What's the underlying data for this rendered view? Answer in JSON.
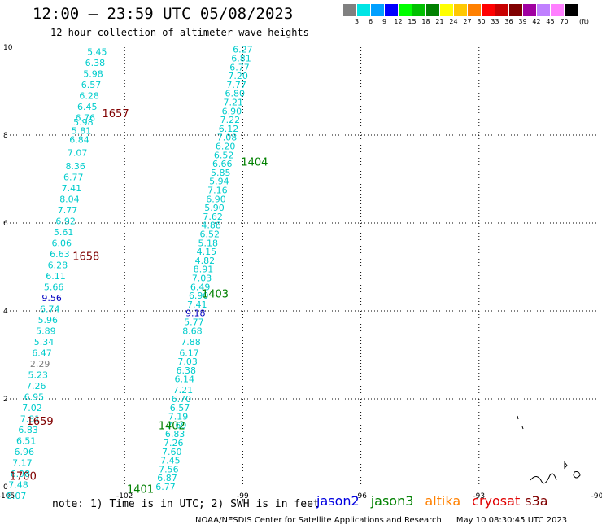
{
  "title": "12:00 – 23:59 UTC 05/08/2023",
  "subtitle": "12 hour collection of altimeter wave heights",
  "legend": {
    "colors": [
      "#808080",
      "#00e5e5",
      "#00a0ff",
      "#0000ff",
      "#00ff00",
      "#00c000",
      "#008000",
      "#ffff00",
      "#ffc800",
      "#ff8000",
      "#ff0000",
      "#c80000",
      "#800000",
      "#a000a0",
      "#c080ff",
      "#ff80ff",
      "#000000"
    ],
    "labels": [
      "3",
      "6",
      "9",
      "12",
      "15",
      "18",
      "21",
      "24",
      "27",
      "30",
      "33",
      "36",
      "39",
      "42",
      "45",
      "70"
    ],
    "unit": "(ft)"
  },
  "note": "note: 1) Time is in UTC; 2) SWH is in feet",
  "missions": [
    {
      "name": "jason2",
      "color": "#0000e0"
    },
    {
      "name": "jason3",
      "color": "#008000"
    },
    {
      "name": "altika",
      "color": "#ff8000"
    },
    {
      "name": "cryosat",
      "color": "#e00000"
    },
    {
      "name": "s3a",
      "color": "#800000"
    }
  ],
  "credit": "NOAA/NESDIS Center for Satellite Applications and Research",
  "credit_time": "May 10 08:30:45 UTC 2023",
  "chart_data": {
    "type": "scatter",
    "xlabel": "",
    "ylabel": "",
    "xlim": [
      -105,
      -90
    ],
    "ylim": [
      0,
      10
    ],
    "x_ticks": [
      "-105",
      "-102",
      "-99",
      "-96",
      "-93",
      "-90"
    ],
    "y_ticks": [
      "0",
      "2",
      "4",
      "6",
      "8",
      "10"
    ],
    "grid": true,
    "units": "ft",
    "tracks": [
      {
        "satellite": "s3a",
        "color": "#800000",
        "time_labels": [
          {
            "text": "1657",
            "x": -102.23,
            "y": 8.5
          },
          {
            "text": "1658",
            "x": -102.98,
            "y": 5.25
          },
          {
            "text": "1659",
            "x": -104.15,
            "y": 1.5
          },
          {
            "text": "1700",
            "x": -104.58,
            "y": 0.25
          }
        ],
        "points": [
          {
            "x": -102.7,
            "y": 9.9,
            "v": "5.45",
            "c": "#00cccc"
          },
          {
            "x": -102.75,
            "y": 9.65,
            "v": "6.38",
            "c": "#00cccc"
          },
          {
            "x": -102.8,
            "y": 9.4,
            "v": "5.98",
            "c": "#00cccc"
          },
          {
            "x": -102.85,
            "y": 9.15,
            "v": "6.57",
            "c": "#00cccc"
          },
          {
            "x": -102.9,
            "y": 8.9,
            "v": "6.28",
            "c": "#00cccc"
          },
          {
            "x": -102.95,
            "y": 8.65,
            "v": "6.45",
            "c": "#00cccc"
          },
          {
            "x": -103.0,
            "y": 8.4,
            "v": "6.76",
            "c": "#00cccc"
          },
          {
            "x": -103.05,
            "y": 8.3,
            "v": "5.98",
            "c": "#00cccc"
          },
          {
            "x": -103.1,
            "y": 8.1,
            "v": "5.81",
            "c": "#00cccc"
          },
          {
            "x": -103.15,
            "y": 7.9,
            "v": "6.84",
            "c": "#00cccc"
          },
          {
            "x": -103.2,
            "y": 7.6,
            "v": "7.07",
            "c": "#00cccc"
          },
          {
            "x": -103.25,
            "y": 7.3,
            "v": "8.36",
            "c": "#00cccc"
          },
          {
            "x": -103.3,
            "y": 7.05,
            "v": "6.77",
            "c": "#00cccc"
          },
          {
            "x": -103.35,
            "y": 6.8,
            "v": "7.41",
            "c": "#00cccc"
          },
          {
            "x": -103.4,
            "y": 6.55,
            "v": "8.04",
            "c": "#00cccc"
          },
          {
            "x": -103.45,
            "y": 6.3,
            "v": "7.77",
            "c": "#00cccc"
          },
          {
            "x": -103.5,
            "y": 6.05,
            "v": "6.92",
            "c": "#00cccc"
          },
          {
            "x": -103.55,
            "y": 5.8,
            "v": "5.61",
            "c": "#00cccc"
          },
          {
            "x": -103.6,
            "y": 5.55,
            "v": "6.06",
            "c": "#00cccc"
          },
          {
            "x": -103.65,
            "y": 5.3,
            "v": "6.63",
            "c": "#00cccc"
          },
          {
            "x": -103.7,
            "y": 5.05,
            "v": "6.28",
            "c": "#00cccc"
          },
          {
            "x": -103.75,
            "y": 4.8,
            "v": "6.11",
            "c": "#00cccc"
          },
          {
            "x": -103.8,
            "y": 4.55,
            "v": "5.66",
            "c": "#00cccc"
          },
          {
            "x": -103.85,
            "y": 4.3,
            "v": "9.56",
            "c": "#0000c0"
          },
          {
            "x": -103.9,
            "y": 4.05,
            "v": "6.74",
            "c": "#00cccc"
          },
          {
            "x": -103.95,
            "y": 3.8,
            "v": "5.96",
            "c": "#00cccc"
          },
          {
            "x": -104.0,
            "y": 3.55,
            "v": "5.89",
            "c": "#00cccc"
          },
          {
            "x": -104.05,
            "y": 3.3,
            "v": "5.34",
            "c": "#00cccc"
          },
          {
            "x": -104.1,
            "y": 3.05,
            "v": "6.47",
            "c": "#00cccc"
          },
          {
            "x": -104.15,
            "y": 2.8,
            "v": "2.29",
            "c": "#808080"
          },
          {
            "x": -104.2,
            "y": 2.55,
            "v": "5.23",
            "c": "#00cccc"
          },
          {
            "x": -104.25,
            "y": 2.3,
            "v": "7.26",
            "c": "#00cccc"
          },
          {
            "x": -104.3,
            "y": 2.05,
            "v": "6.95",
            "c": "#00cccc"
          },
          {
            "x": -104.35,
            "y": 1.8,
            "v": "7.02",
            "c": "#00cccc"
          },
          {
            "x": -104.4,
            "y": 1.55,
            "v": "7.81",
            "c": "#00cccc"
          },
          {
            "x": -104.45,
            "y": 1.3,
            "v": "6.83",
            "c": "#00cccc"
          },
          {
            "x": -104.5,
            "y": 1.05,
            "v": "6.51",
            "c": "#00cccc"
          },
          {
            "x": -104.55,
            "y": 0.8,
            "v": "6.96",
            "c": "#00cccc"
          },
          {
            "x": -104.6,
            "y": 0.55,
            "v": "7.17",
            "c": "#00cccc"
          },
          {
            "x": -104.65,
            "y": 0.3,
            "v": "6.98",
            "c": "#00cccc"
          },
          {
            "x": -104.7,
            "y": 0.05,
            "v": "7.48",
            "c": "#00cccc"
          },
          {
            "x": -104.75,
            "y": -0.2,
            "v": "8.07",
            "c": "#00cccc"
          }
        ]
      },
      {
        "satellite": "jason3",
        "color": "#008000",
        "time_labels": [
          {
            "text": "1404",
            "x": -98.7,
            "y": 7.4
          },
          {
            "text": "1403",
            "x": -99.7,
            "y": 4.4
          },
          {
            "text": "1402",
            "x": -100.8,
            "y": 1.4
          },
          {
            "text": "1401",
            "x": -101.6,
            "y": -0.05
          }
        ],
        "points": [
          {
            "x": -99.0,
            "y": 9.95,
            "v": "6.27",
            "c": "#00cccc"
          },
          {
            "x": -99.04,
            "y": 9.75,
            "v": "6.81",
            "c": "#00cccc"
          },
          {
            "x": -99.08,
            "y": 9.55,
            "v": "6.77",
            "c": "#00cccc"
          },
          {
            "x": -99.12,
            "y": 9.35,
            "v": "7.20",
            "c": "#00cccc"
          },
          {
            "x": -99.16,
            "y": 9.15,
            "v": "7.77",
            "c": "#00cccc"
          },
          {
            "x": -99.2,
            "y": 8.95,
            "v": "6.80",
            "c": "#00cccc"
          },
          {
            "x": -99.24,
            "y": 8.75,
            "v": "7.21",
            "c": "#00cccc"
          },
          {
            "x": -99.28,
            "y": 8.55,
            "v": "6.90",
            "c": "#00cccc"
          },
          {
            "x": -99.32,
            "y": 8.35,
            "v": "7.22",
            "c": "#00cccc"
          },
          {
            "x": -99.36,
            "y": 8.15,
            "v": "6.12",
            "c": "#00cccc"
          },
          {
            "x": -99.4,
            "y": 7.95,
            "v": "7.08",
            "c": "#00cccc"
          },
          {
            "x": -99.44,
            "y": 7.75,
            "v": "6.20",
            "c": "#00cccc"
          },
          {
            "x": -99.48,
            "y": 7.55,
            "v": "6.52",
            "c": "#00cccc"
          },
          {
            "x": -99.52,
            "y": 7.35,
            "v": "6.66",
            "c": "#00cccc"
          },
          {
            "x": -99.56,
            "y": 7.15,
            "v": "5.85",
            "c": "#00cccc"
          },
          {
            "x": -99.6,
            "y": 6.95,
            "v": "5.94",
            "c": "#00cccc"
          },
          {
            "x": -99.64,
            "y": 6.75,
            "v": "7.16",
            "c": "#00cccc"
          },
          {
            "x": -99.68,
            "y": 6.55,
            "v": "6.90",
            "c": "#00cccc"
          },
          {
            "x": -99.72,
            "y": 6.35,
            "v": "5.90",
            "c": "#00cccc"
          },
          {
            "x": -99.76,
            "y": 6.15,
            "v": "7.62",
            "c": "#00cccc"
          },
          {
            "x": -99.8,
            "y": 5.95,
            "v": "4.88",
            "c": "#00cccc"
          },
          {
            "x": -99.84,
            "y": 5.75,
            "v": "6.52",
            "c": "#00cccc"
          },
          {
            "x": -99.88,
            "y": 5.55,
            "v": "5.18",
            "c": "#00cccc"
          },
          {
            "x": -99.92,
            "y": 5.35,
            "v": "4.15",
            "c": "#00cccc"
          },
          {
            "x": -99.96,
            "y": 5.15,
            "v": "4.82",
            "c": "#00cccc"
          },
          {
            "x": -100.0,
            "y": 4.95,
            "v": "8.91",
            "c": "#00cccc"
          },
          {
            "x": -100.04,
            "y": 4.75,
            "v": "7.03",
            "c": "#00cccc"
          },
          {
            "x": -100.08,
            "y": 4.55,
            "v": "6.49",
            "c": "#00cccc"
          },
          {
            "x": -100.12,
            "y": 4.35,
            "v": "6.90",
            "c": "#00cccc"
          },
          {
            "x": -100.16,
            "y": 4.15,
            "v": "7.41",
            "c": "#00cccc"
          },
          {
            "x": -100.2,
            "y": 3.95,
            "v": "9.18",
            "c": "#0000c0"
          },
          {
            "x": -100.24,
            "y": 3.75,
            "v": "5.77",
            "c": "#00cccc"
          },
          {
            "x": -100.28,
            "y": 3.55,
            "v": "8.68",
            "c": "#00cccc"
          },
          {
            "x": -100.32,
            "y": 3.3,
            "v": "7.88",
            "c": "#00cccc"
          },
          {
            "x": -100.36,
            "y": 3.05,
            "v": "6.17",
            "c": "#00cccc"
          },
          {
            "x": -100.4,
            "y": 2.85,
            "v": "7.03",
            "c": "#00cccc"
          },
          {
            "x": -100.44,
            "y": 2.65,
            "v": "6.38",
            "c": "#00cccc"
          },
          {
            "x": -100.48,
            "y": 2.45,
            "v": "6.14",
            "c": "#00cccc"
          },
          {
            "x": -100.52,
            "y": 2.2,
            "v": "7.21",
            "c": "#00cccc"
          },
          {
            "x": -100.56,
            "y": 2.0,
            "v": "6.70",
            "c": "#00cccc"
          },
          {
            "x": -100.6,
            "y": 1.8,
            "v": "6.57",
            "c": "#00cccc"
          },
          {
            "x": -100.64,
            "y": 1.6,
            "v": "7.19",
            "c": "#00cccc"
          },
          {
            "x": -100.68,
            "y": 1.4,
            "v": "7.69",
            "c": "#00cccc"
          },
          {
            "x": -100.72,
            "y": 1.2,
            "v": "6.83",
            "c": "#00cccc"
          },
          {
            "x": -100.76,
            "y": 1.0,
            "v": "7.26",
            "c": "#00cccc"
          },
          {
            "x": -100.8,
            "y": 0.8,
            "v": "7.60",
            "c": "#00cccc"
          },
          {
            "x": -100.84,
            "y": 0.6,
            "v": "7.45",
            "c": "#00cccc"
          },
          {
            "x": -100.88,
            "y": 0.4,
            "v": "7.56",
            "c": "#00cccc"
          },
          {
            "x": -100.92,
            "y": 0.2,
            "v": "6.87",
            "c": "#00cccc"
          },
          {
            "x": -100.96,
            "y": 0.0,
            "v": "6.77",
            "c": "#00cccc"
          }
        ]
      }
    ]
  }
}
